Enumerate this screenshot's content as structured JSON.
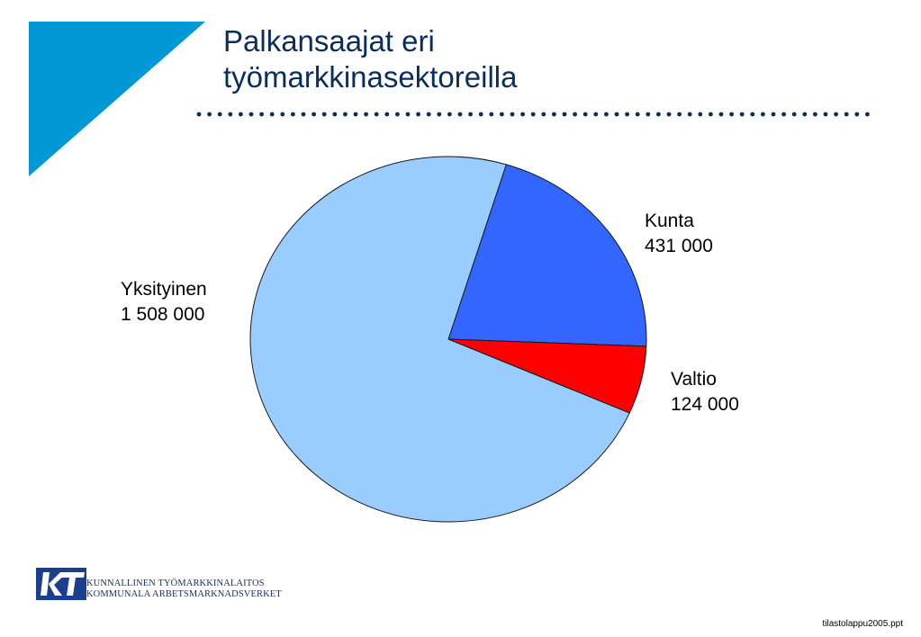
{
  "title": {
    "line1": "Palkansaajat eri",
    "line2": "työmarkkinasektoreilla"
  },
  "colors": {
    "title": "#0b2d5c",
    "corner_accent": "#0099d6",
    "dots": "#0b2d5c",
    "pie_outline": "#1a1a1a"
  },
  "chart_data": {
    "type": "pie",
    "slices": [
      {
        "name": "Kunta",
        "value": 431000,
        "value_label": "431 000",
        "color": "#3366ff"
      },
      {
        "name": "Valtio",
        "value": 124000,
        "value_label": "124 000",
        "color": "#ff0000"
      },
      {
        "name": "Yksityinen",
        "value": 1508000,
        "value_label": "1 508 000",
        "color": "#99ccff"
      }
    ]
  },
  "footer": {
    "org_line1": "KUNNALLINEN TYÖMARKKINALAITOS",
    "org_line2": "KOMMUNALA ARBETSMARKNADSVERKET",
    "file_name": "tilastolappu2005.ppt",
    "logo_icon": "kt-logo-icon"
  }
}
